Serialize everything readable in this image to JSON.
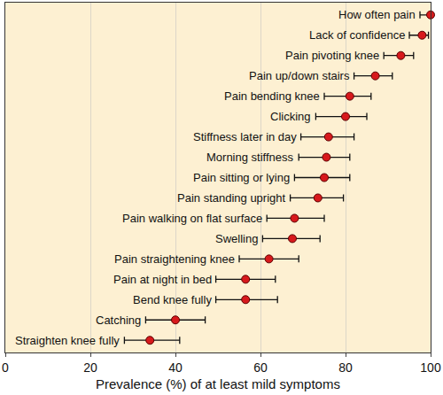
{
  "chart_data": {
    "type": "scatter",
    "xlabel": "Prevalence (%) of at least mild symptoms",
    "categories": [
      "How often pain",
      "Lack of confidence",
      "Pain pivoting knee",
      "Pain up/down stairs",
      "Pain bending knee",
      "Clicking",
      "Stiffness later in day",
      "Morning stiffness",
      "Pain sitting or lying",
      "Pain standing upright",
      "Pain walking on flat surface",
      "Swelling",
      "Pain straightening knee",
      "Pain at night in bed",
      "Bend knee fully",
      "Catching",
      "Straighten knee fully"
    ],
    "values": [
      100,
      98,
      93,
      87,
      81,
      80,
      76,
      75.5,
      75,
      73.5,
      68,
      67.5,
      62,
      56.5,
      56.5,
      40,
      34
    ],
    "ci_low": [
      97.5,
      95,
      89,
      82,
      75,
      73,
      69.5,
      69,
      68,
      67,
      61.5,
      60.5,
      55,
      49.5,
      49.5,
      33,
      28
    ],
    "ci_high": [
      100,
      99.5,
      96,
      91,
      86,
      85,
      82,
      81,
      81,
      79.5,
      75,
      74,
      69,
      63.5,
      64,
      47,
      41
    ],
    "color": "#d7191c",
    "marker": "circle",
    "xlim": [
      0,
      100
    ],
    "xticks": [
      0,
      20,
      40,
      60,
      80,
      100
    ],
    "grid": true,
    "tick_labels": "x"
  }
}
